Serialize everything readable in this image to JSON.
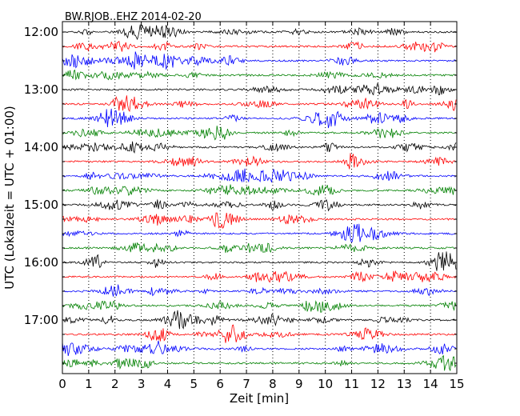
{
  "chart_data": {
    "type": "line",
    "title": "BW.RJOB..EHZ 2014-02-20",
    "xlabel": "Zeit  [min]",
    "ylabel": "UTC (Lokalzeit = UTC + 01:00)",
    "xlim": [
      0,
      15
    ],
    "x_ticks": [
      "0",
      "1",
      "2",
      "3",
      "4",
      "5",
      "6",
      "7",
      "8",
      "9",
      "10",
      "11",
      "12",
      "13",
      "14",
      "15"
    ],
    "y_ticks": [
      "12:00",
      "13:00",
      "14:00",
      "15:00",
      "16:00",
      "17:00"
    ],
    "start_time": "12:00",
    "trace_interval_min": 15,
    "trace_count": 24,
    "trace_colors": [
      "#000000",
      "#ff0000",
      "#0000ff",
      "#008000"
    ],
    "grid": {
      "vertical": true,
      "style": "dotted"
    }
  }
}
